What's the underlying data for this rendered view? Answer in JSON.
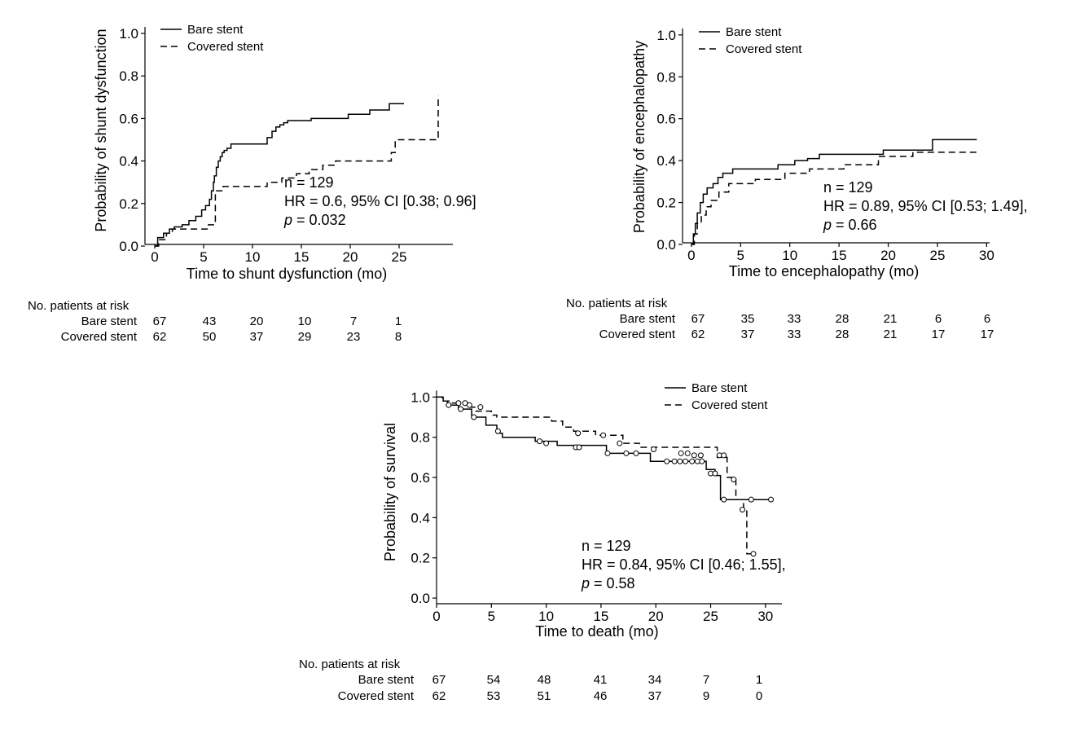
{
  "chart_data": [
    {
      "type": "line",
      "name": "shunt-dysfunction",
      "xlabel": "Time to shunt dysfunction (mo)",
      "ylabel": "Probability of shunt dysfunction",
      "xlim": [
        -1,
        30.5
      ],
      "ylim": [
        0,
        1.05
      ],
      "xticks": [
        0,
        5,
        10,
        15,
        20,
        25
      ],
      "yticks": [
        0.0,
        0.2,
        0.4,
        0.6,
        0.8,
        1.0
      ],
      "ytick_labels": [
        "0.0",
        "0.2",
        "0.4",
        "0.6",
        "0.8",
        "1.0"
      ],
      "grid": false,
      "legend": "top-left",
      "step": true,
      "series": [
        {
          "name": "Bare stent",
          "dash": false,
          "x": [
            0,
            0.3,
            0.9,
            1.5,
            2.0,
            2.8,
            3.5,
            4.2,
            4.8,
            5.2,
            5.6,
            5.8,
            6.0,
            6.1,
            6.3,
            6.5,
            6.7,
            6.9,
            7.1,
            7.4,
            7.8,
            11.5,
            12.0,
            12.4,
            12.8,
            13.2,
            13.6,
            16.0,
            19.8,
            22.0,
            24.0,
            25.5
          ],
          "y": [
            0,
            0.04,
            0.06,
            0.08,
            0.09,
            0.1,
            0.12,
            0.14,
            0.17,
            0.19,
            0.22,
            0.26,
            0.3,
            0.33,
            0.37,
            0.4,
            0.42,
            0.44,
            0.45,
            0.46,
            0.48,
            0.51,
            0.54,
            0.56,
            0.57,
            0.58,
            0.59,
            0.6,
            0.62,
            0.64,
            0.67,
            0.67
          ]
        },
        {
          "name": "Covered stent",
          "dash": true,
          "x": [
            0,
            0.4,
            1.2,
            1.8,
            5.5,
            6.2,
            7.0,
            11.5,
            13.0,
            14.5,
            15.8,
            17.2,
            18.5,
            24.2,
            24.6,
            29.0
          ],
          "y": [
            0,
            0.03,
            0.06,
            0.08,
            0.1,
            0.26,
            0.28,
            0.3,
            0.32,
            0.34,
            0.36,
            0.38,
            0.4,
            0.44,
            0.5,
            0.71
          ]
        }
      ],
      "annotation": {
        "n": "n = 129",
        "hr": "HR = 0.6, 95% CI [0.38; 0.96]",
        "p_label": "p",
        "p_value": " = 0.032"
      },
      "risk_table": {
        "title": "No. patients at risk",
        "rows": [
          {
            "label": "Bare stent",
            "values": [
              "67",
              "43",
              "20",
              "10",
              "7",
              "1"
            ]
          },
          {
            "label": "Covered stent",
            "values": [
              "62",
              "50",
              "37",
              "29",
              "23",
              "8"
            ]
          }
        ]
      }
    },
    {
      "type": "line",
      "name": "encephalopathy",
      "xlabel": "Time to encephalopathy (mo)",
      "ylabel": "Probability of encephalopathy",
      "xlim": [
        -0.9,
        30.3
      ],
      "ylim": [
        0,
        1.05
      ],
      "xticks": [
        0,
        5,
        10,
        15,
        20,
        25,
        30
      ],
      "yticks": [
        0.0,
        0.2,
        0.4,
        0.6,
        0.8,
        1.0
      ],
      "ytick_labels": [
        "0.0",
        "0.2",
        "0.4",
        "0.6",
        "0.8",
        "1.0"
      ],
      "grid": false,
      "legend": "top-left",
      "step": true,
      "series": [
        {
          "name": "Bare stent",
          "dash": false,
          "x": [
            0,
            0.2,
            0.4,
            0.6,
            0.9,
            1.2,
            1.6,
            2.2,
            2.7,
            3.2,
            4.2,
            8.8,
            10.5,
            11.8,
            13.0,
            19.5,
            24.5,
            29.0
          ],
          "y": [
            0,
            0.05,
            0.1,
            0.15,
            0.2,
            0.24,
            0.27,
            0.29,
            0.32,
            0.34,
            0.36,
            0.38,
            0.4,
            0.41,
            0.43,
            0.45,
            0.5,
            0.5
          ]
        },
        {
          "name": "Covered stent",
          "dash": true,
          "x": [
            0,
            0.3,
            0.6,
            1.0,
            1.5,
            2.0,
            2.8,
            3.8,
            6.5,
            9.5,
            12.0,
            15.5,
            19.0,
            22.5,
            29.0
          ],
          "y": [
            0,
            0.05,
            0.1,
            0.14,
            0.18,
            0.21,
            0.25,
            0.29,
            0.31,
            0.34,
            0.36,
            0.38,
            0.42,
            0.44,
            0.44
          ]
        }
      ],
      "annotation": {
        "n": "n = 129",
        "hr": "HR = 0.89, 95% CI [0.53; 1.49],",
        "p_label": "p",
        "p_value": " = 0.66"
      },
      "risk_table": {
        "title": "No. patients at risk",
        "rows": [
          {
            "label": "Bare stent",
            "values": [
              "67",
              "35",
              "33",
              "28",
              "21",
              "6",
              "6"
            ]
          },
          {
            "label": "Covered stent",
            "values": [
              "62",
              "37",
              "33",
              "28",
              "21",
              "17",
              "17"
            ]
          }
        ]
      }
    },
    {
      "type": "line",
      "name": "survival",
      "xlabel": "Time to death (mo)",
      "ylabel": "Probability of survival",
      "xlim": [
        0,
        31.5
      ],
      "ylim": [
        -0.02,
        1.05
      ],
      "xticks": [
        0,
        5,
        10,
        15,
        20,
        25,
        30
      ],
      "yticks": [
        0.0,
        0.2,
        0.4,
        0.6,
        0.8,
        1.0
      ],
      "ytick_labels": [
        "0.0",
        "0.2",
        "0.4",
        "0.6",
        "0.8",
        "1.0"
      ],
      "grid": false,
      "legend": "top-right",
      "step": true,
      "series": [
        {
          "name": "Bare stent",
          "dash": false,
          "x": [
            0,
            0.6,
            1.0,
            2.0,
            3.2,
            4.5,
            5.5,
            6.0,
            9.0,
            11.0,
            15.5,
            19.5,
            24.6,
            25.4,
            25.9,
            30.5
          ],
          "y": [
            1.0,
            0.98,
            0.96,
            0.94,
            0.9,
            0.86,
            0.82,
            0.8,
            0.78,
            0.76,
            0.72,
            0.68,
            0.64,
            0.61,
            0.49,
            0.49
          ],
          "censored": [
            {
              "x": 1.1,
              "y": 0.96
            },
            {
              "x": 2.2,
              "y": 0.94
            },
            {
              "x": 3.4,
              "y": 0.9
            },
            {
              "x": 5.6,
              "y": 0.83
            },
            {
              "x": 9.4,
              "y": 0.78
            },
            {
              "x": 10.0,
              "y": 0.77
            },
            {
              "x": 12.7,
              "y": 0.75
            },
            {
              "x": 13.0,
              "y": 0.75
            },
            {
              "x": 15.6,
              "y": 0.72
            },
            {
              "x": 17.3,
              "y": 0.72
            },
            {
              "x": 18.2,
              "y": 0.72
            },
            {
              "x": 21.0,
              "y": 0.68
            },
            {
              "x": 21.7,
              "y": 0.68
            },
            {
              "x": 22.2,
              "y": 0.68
            },
            {
              "x": 22.7,
              "y": 0.68
            },
            {
              "x": 23.3,
              "y": 0.68
            },
            {
              "x": 23.8,
              "y": 0.68
            },
            {
              "x": 24.2,
              "y": 0.68
            },
            {
              "x": 25.0,
              "y": 0.62
            },
            {
              "x": 25.4,
              "y": 0.62
            },
            {
              "x": 26.2,
              "y": 0.49
            },
            {
              "x": 28.7,
              "y": 0.49
            },
            {
              "x": 30.5,
              "y": 0.49
            }
          ]
        },
        {
          "name": "Covered stent",
          "dash": true,
          "x": [
            0,
            0.5,
            1.2,
            3.0,
            3.5,
            5.0,
            5.5,
            10.5,
            11.5,
            12.5,
            14.5,
            17.0,
            18.5,
            25.6,
            26.5,
            27.3,
            28.0,
            28.3,
            29.0
          ],
          "y": [
            1.0,
            0.98,
            0.97,
            0.95,
            0.93,
            0.91,
            0.9,
            0.88,
            0.85,
            0.83,
            0.81,
            0.77,
            0.75,
            0.7,
            0.6,
            0.49,
            0.44,
            0.22,
            0.22
          ],
          "censored": [
            {
              "x": 2.0,
              "y": 0.97
            },
            {
              "x": 2.6,
              "y": 0.97
            },
            {
              "x": 3.0,
              "y": 0.96
            },
            {
              "x": 4.0,
              "y": 0.95
            },
            {
              "x": 12.9,
              "y": 0.82
            },
            {
              "x": 15.2,
              "y": 0.81
            },
            {
              "x": 16.7,
              "y": 0.77
            },
            {
              "x": 19.8,
              "y": 0.74
            },
            {
              "x": 22.3,
              "y": 0.72
            },
            {
              "x": 22.9,
              "y": 0.72
            },
            {
              "x": 23.5,
              "y": 0.71
            },
            {
              "x": 24.1,
              "y": 0.71
            },
            {
              "x": 25.8,
              "y": 0.71
            },
            {
              "x": 26.2,
              "y": 0.71
            },
            {
              "x": 27.1,
              "y": 0.59
            },
            {
              "x": 27.9,
              "y": 0.44
            },
            {
              "x": 28.9,
              "y": 0.22
            }
          ]
        }
      ],
      "annotation": {
        "n": "n = 129",
        "hr": "HR = 0.84, 95% CI [0.46; 1.55],",
        "p_label": "p",
        "p_value": " = 0.58"
      },
      "risk_table": {
        "title": "No. patients at risk",
        "rows": [
          {
            "label": "Bare stent",
            "values": [
              "67",
              "54",
              "48",
              "41",
              "34",
              "7",
              "1"
            ]
          },
          {
            "label": "Covered stent",
            "values": [
              "62",
              "53",
              "51",
              "46",
              "37",
              "9",
              "0"
            ]
          }
        ]
      }
    }
  ]
}
